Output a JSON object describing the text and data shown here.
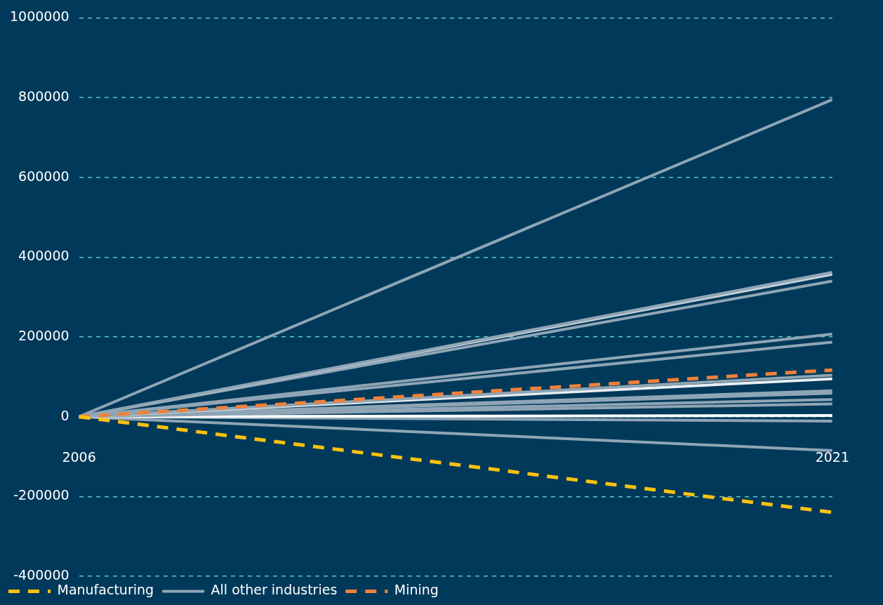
{
  "chart_data": {
    "type": "line",
    "x": [
      2006,
      2021
    ],
    "xlim": [
      2006,
      2021
    ],
    "xticks": [
      2006,
      2021
    ],
    "ylim": [
      -400000,
      1000000
    ],
    "yticks": [
      -400000,
      -200000,
      0,
      200000,
      400000,
      600000,
      800000,
      1000000
    ],
    "grid": "y",
    "legend": "bottom",
    "marker": "none",
    "series": [
      {
        "name": "Manufacturing",
        "color": "#ffc20e",
        "line_style": "dashed",
        "values": [
          0,
          -240000
        ]
      },
      {
        "name": "All other industries",
        "color": "#8fa5b5",
        "line_style": "solid",
        "values": [
          0,
          795000
        ]
      },
      {
        "name": "Mining",
        "color": "#f0813a",
        "line_style": "dashed",
        "values": [
          0,
          117000
        ]
      },
      {
        "color": "#8fa5b5",
        "line_style": "solid",
        "values": [
          0,
          362000
        ]
      },
      {
        "color": "#c8d4dc",
        "line_style": "solid",
        "values": [
          0,
          357000
        ]
      },
      {
        "color": "#8fa5b5",
        "line_style": "solid",
        "values": [
          0,
          340000
        ]
      },
      {
        "color": "#8fa5b5",
        "line_style": "solid",
        "values": [
          0,
          207000
        ]
      },
      {
        "color": "#8fa5b5",
        "line_style": "solid",
        "values": [
          0,
          187000
        ]
      },
      {
        "color": "#8fa5b5",
        "line_style": "solid",
        "values": [
          0,
          104000
        ]
      },
      {
        "color": "#e8eef2",
        "line_style": "solid",
        "values": [
          0,
          95000
        ]
      },
      {
        "color": "#8fa5b5",
        "line_style": "solid",
        "values": [
          0,
          65000
        ]
      },
      {
        "color": "#8fa5b5",
        "line_style": "solid",
        "values": [
          0,
          59000
        ]
      },
      {
        "color": "#8fa5b5",
        "line_style": "solid",
        "values": [
          0,
          43000
        ]
      },
      {
        "color": "#8fa5b5",
        "line_style": "solid",
        "values": [
          0,
          32000
        ]
      },
      {
        "color": "#ffffff",
        "line_style": "solid",
        "values": [
          0,
          3000
        ]
      },
      {
        "color": "#8fa5b5",
        "line_style": "solid",
        "values": [
          0,
          -11000
        ]
      },
      {
        "color": "#8fa5b5",
        "line_style": "solid",
        "values": [
          0,
          -85000
        ]
      }
    ]
  }
}
